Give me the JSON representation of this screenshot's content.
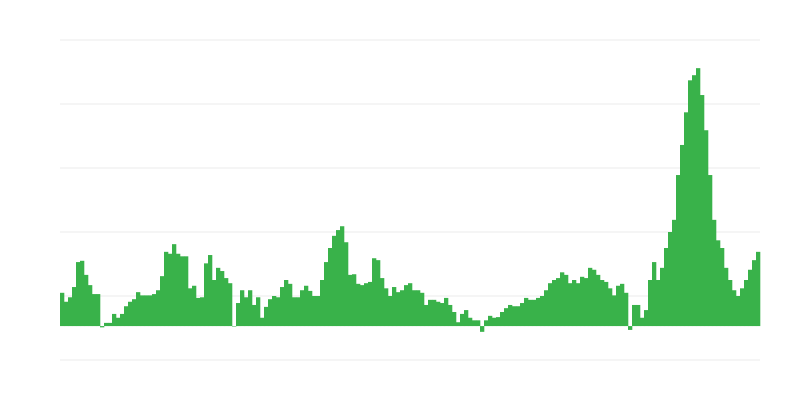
{
  "colors": {
    "bar": "#39b24a",
    "grid": "#ebebeb",
    "background": "#ffffff"
  },
  "chart_data": {
    "type": "bar",
    "title": "",
    "xlabel": "",
    "ylabel": "",
    "grid": true,
    "gridlines": [
      -0.53,
      0.47,
      1.47,
      2.47,
      3.47,
      4.47
    ],
    "ylim": [
      -0.53,
      4.47
    ],
    "values": [
      0.52,
      0.38,
      0.45,
      0.61,
      1.0,
      1.02,
      0.8,
      0.64,
      0.5,
      0.5,
      -0.02,
      0.05,
      0.05,
      0.19,
      0.13,
      0.19,
      0.31,
      0.38,
      0.42,
      0.53,
      0.48,
      0.48,
      0.48,
      0.5,
      0.56,
      0.78,
      1.16,
      1.13,
      1.28,
      1.13,
      1.09,
      1.09,
      0.59,
      0.63,
      0.44,
      0.45,
      0.98,
      1.11,
      0.72,
      0.91,
      0.86,
      0.75,
      0.67,
      0,
      0.36,
      0.56,
      0.45,
      0.56,
      0.33,
      0.45,
      0.13,
      0.3,
      0.42,
      0.47,
      0.45,
      0.61,
      0.72,
      0.66,
      0.45,
      0.45,
      0.56,
      0.63,
      0.55,
      0.47,
      0.47,
      0.72,
      1.0,
      1.22,
      1.41,
      1.5,
      1.56,
      1.31,
      0.8,
      0.81,
      0.66,
      0.64,
      0.67,
      0.69,
      1.06,
      1.03,
      0.75,
      0.59,
      0.47,
      0.61,
      0.53,
      0.56,
      0.64,
      0.67,
      0.56,
      0.56,
      0.52,
      0.33,
      0.41,
      0.41,
      0.38,
      0.36,
      0.44,
      0.33,
      0.22,
      0.06,
      0.19,
      0.25,
      0.13,
      0.09,
      0.09,
      -0.09,
      0.09,
      0.16,
      0.13,
      0.14,
      0.22,
      0.28,
      0.33,
      0.31,
      0.31,
      0.36,
      0.44,
      0.41,
      0.41,
      0.44,
      0.47,
      0.56,
      0.67,
      0.72,
      0.75,
      0.84,
      0.8,
      0.67,
      0.72,
      0.67,
      0.77,
      0.75,
      0.91,
      0.88,
      0.8,
      0.72,
      0.69,
      0.59,
      0.48,
      0.63,
      0.66,
      0.52,
      -0.06,
      0.33,
      0.33,
      0.13,
      0.25,
      0.72,
      1.0,
      0.72,
      0.91,
      1.22,
      1.47,
      1.66,
      2.36,
      2.83,
      3.34,
      3.84,
      3.92,
      4.03,
      3.61,
      3.06,
      2.36,
      1.66,
      1.34,
      1.22,
      0.91,
      0.72,
      0.56,
      0.47,
      0.59,
      0.72,
      0.88,
      1.03,
      1.16
    ]
  }
}
